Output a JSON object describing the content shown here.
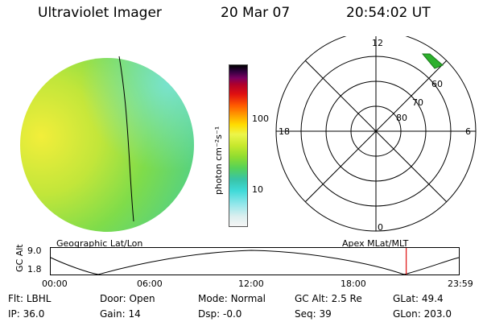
{
  "header": {
    "instrument": "Ultraviolet Imager",
    "date": "20 Mar 07",
    "time": "20:54:02 UT"
  },
  "colorbar": {
    "label": "photon cm⁻²s⁻¹",
    "ticks": [
      "100",
      "10"
    ]
  },
  "polar_plot": {
    "mlt_labels": {
      "top": "12",
      "left": "18",
      "right": "6",
      "bottom": "0"
    },
    "lat_labels": [
      "60",
      "70",
      "80"
    ]
  },
  "altitude_panel": {
    "ylabel": "GC Alt",
    "yticks": [
      "9.0",
      "1.8"
    ],
    "left_caption": "Geographic Lat/Lon",
    "right_caption": "Apex MLat/MLT",
    "xticks": [
      "00:00",
      "06:00",
      "12:00",
      "18:00",
      "23:59"
    ],
    "current_time_fraction": 0.871
  },
  "status": {
    "row1": [
      {
        "key": "Flt:",
        "value": "LBHL"
      },
      {
        "key": "Door:",
        "value": "Open"
      },
      {
        "key": "Mode:",
        "value": "Normal"
      },
      {
        "key": "GC Alt:",
        "value": "2.5 Re"
      },
      {
        "key": "GLat:",
        "value": "49.4"
      }
    ],
    "row2": [
      {
        "key": "IP:",
        "value": "36.0"
      },
      {
        "key": "Gain:",
        "value": "14"
      },
      {
        "key": "Dsp:",
        "value": "-0.0"
      },
      {
        "key": "Seq:",
        "value": "39"
      },
      {
        "key": "GLon:",
        "value": "203.0"
      }
    ]
  }
}
